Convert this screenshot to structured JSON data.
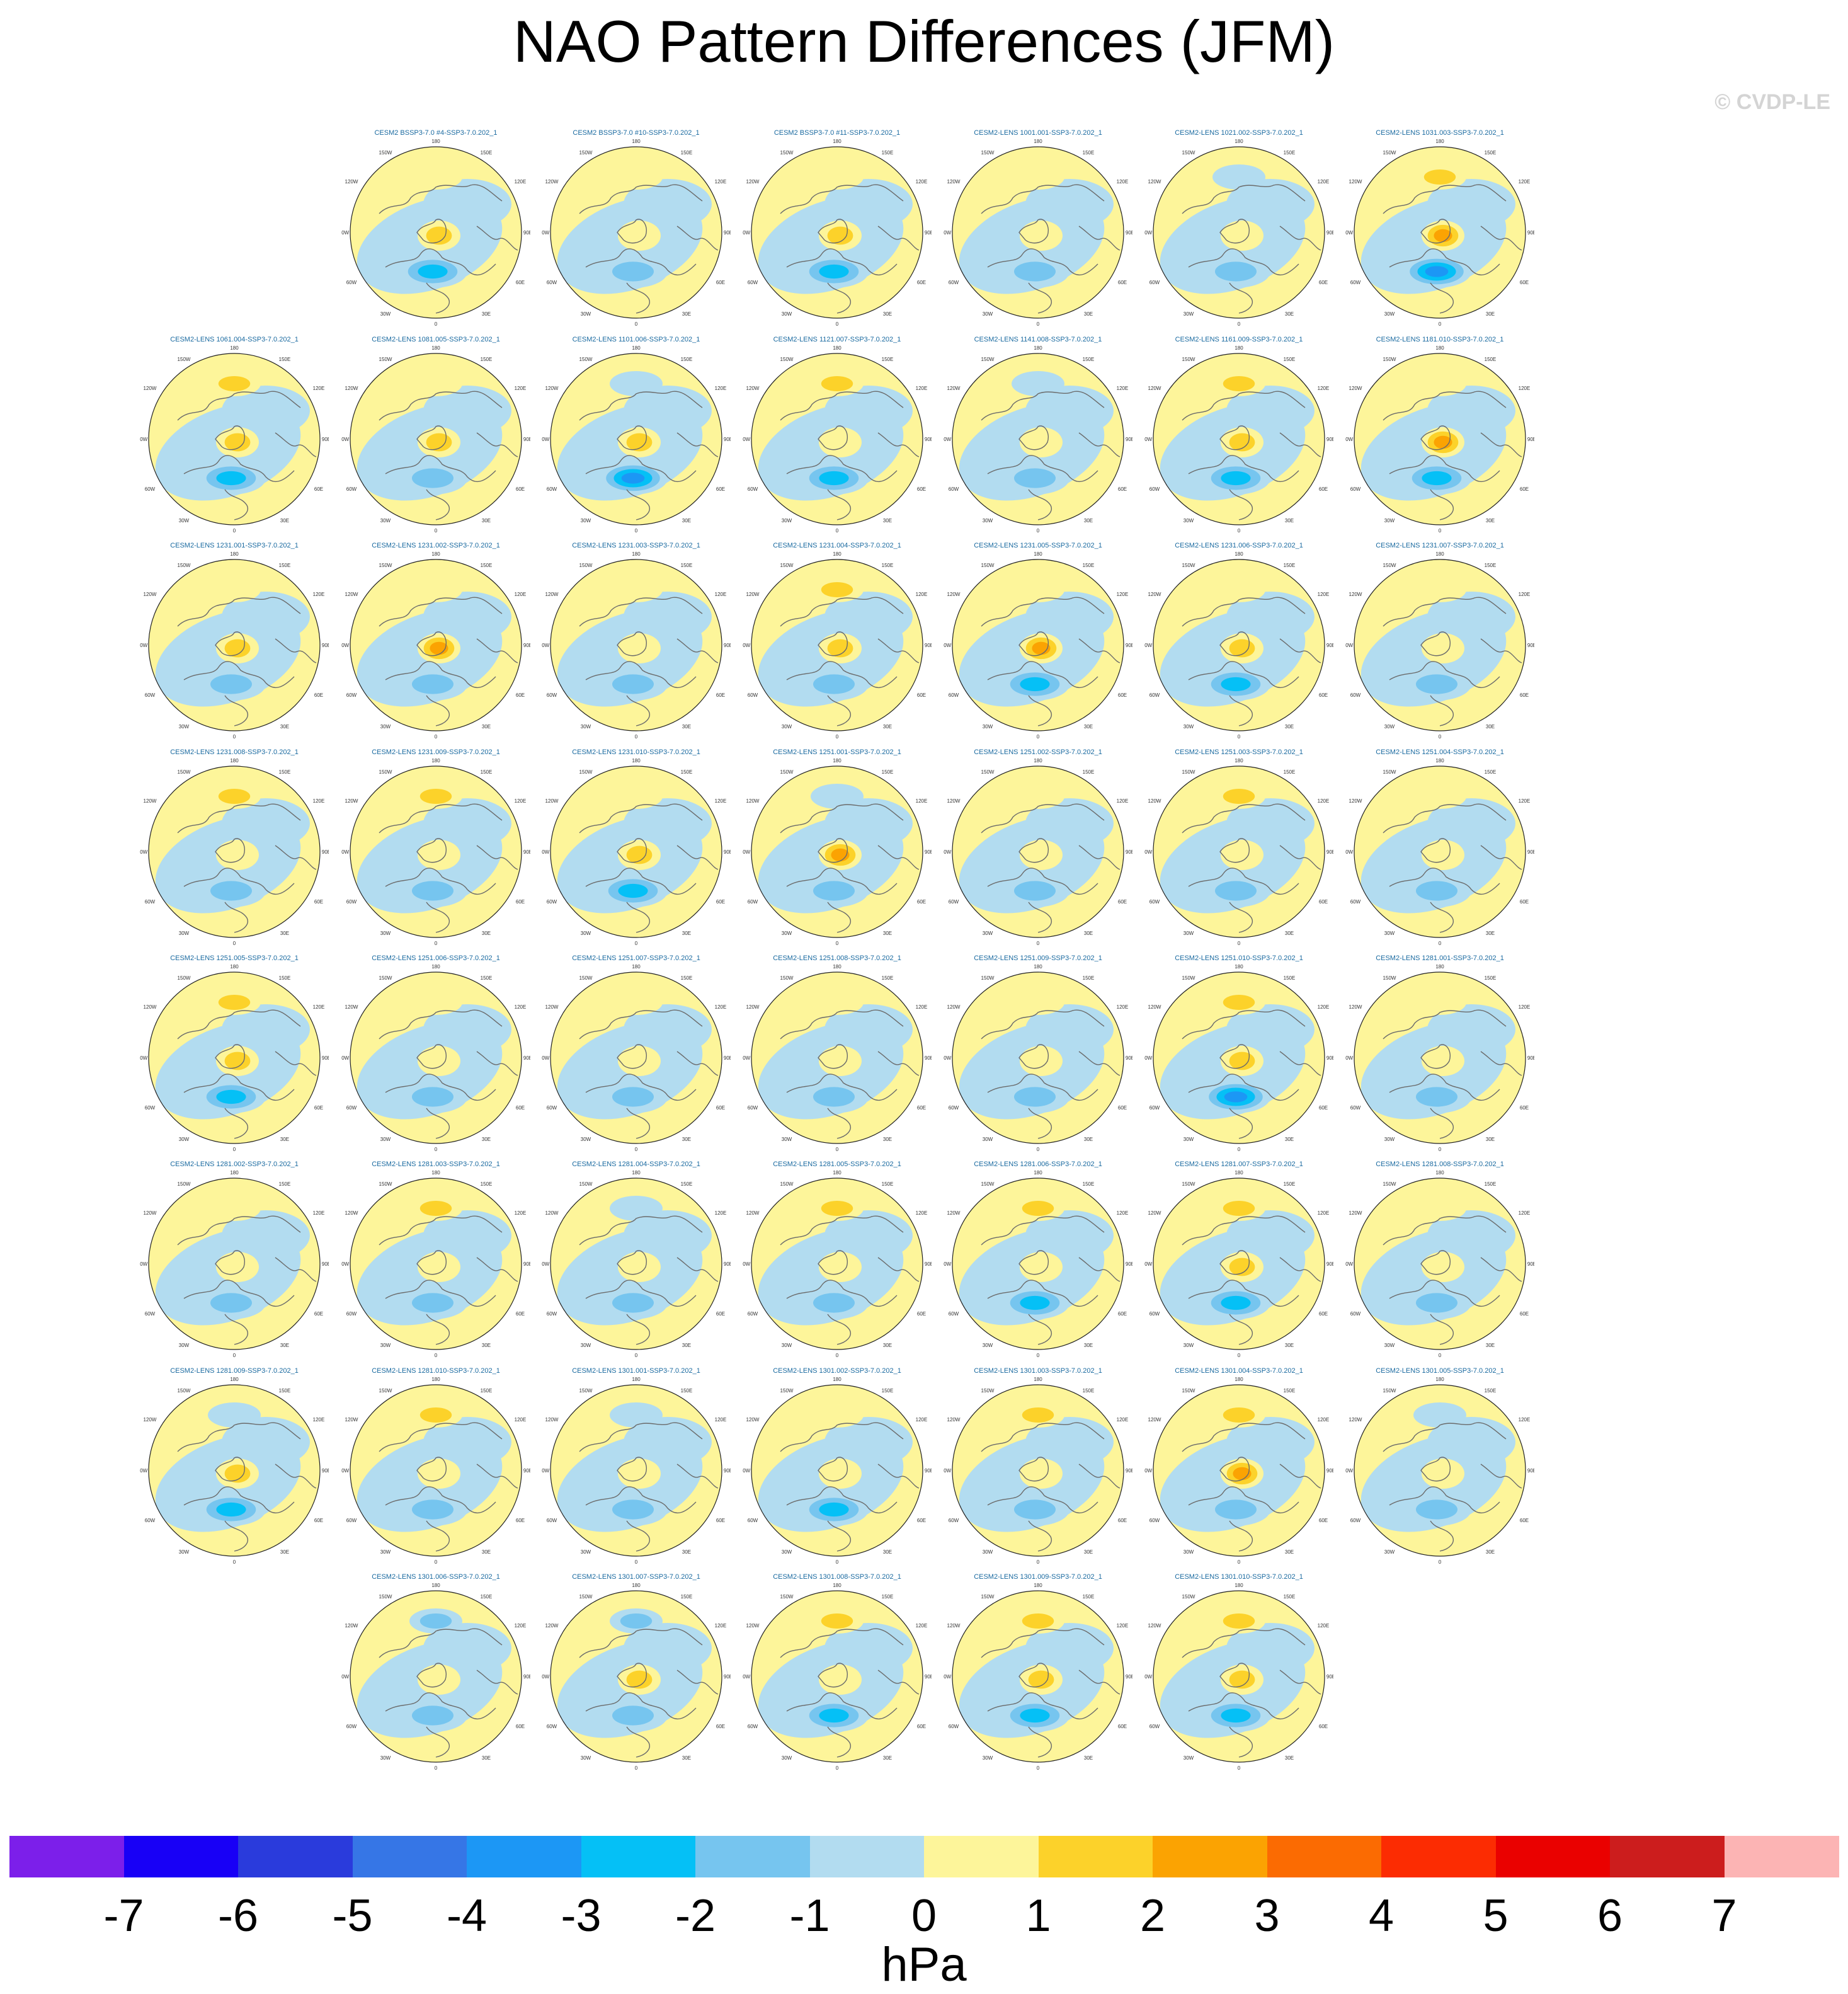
{
  "title": "NAO Pattern Differences (JFM)",
  "watermark": "© CVDP-LE",
  "units": "hPa",
  "colorbar": {
    "labels": [
      "-7",
      "-6",
      "-5",
      "-4",
      "-3",
      "-2",
      "-1",
      "0",
      "1",
      "2",
      "3",
      "4",
      "5",
      "6",
      "7"
    ],
    "colors": [
      "#7c1fea",
      "#1800f6",
      "#2a3bdc",
      "#3676e6",
      "#1c97f5",
      "#05c0f6",
      "#76c5ef",
      "#b2dcf0",
      "#fdf59a",
      "#fcd22a",
      "#fba302",
      "#fb6b02",
      "#fc2c02",
      "#ea0100",
      "#cc1d1d",
      "#fcb4b4"
    ]
  },
  "map_axis_labels": {
    "top": "180",
    "bottom": "0",
    "upper_left": "150W",
    "upper_right": "150E",
    "mid_upper_left": "120W",
    "mid_upper_right": "120E",
    "left": "90W",
    "right": "90E",
    "mid_lower_left": "60W",
    "mid_lower_right": "60E",
    "lower_left": "30W",
    "lower_right": "30E"
  },
  "panels": [
    {
      "title": "CESM2 BSSP3-7.0 #4-SSP3-7.0.202_1",
      "row": 0,
      "col": 1,
      "pos": 1.2,
      "neg": -2.6,
      "pacific": 1.0
    },
    {
      "title": "CESM2 BSSP3-7.0 #10-SSP3-7.0.202_1",
      "row": 0,
      "col": 2,
      "pos": 0.8,
      "neg": -1.6,
      "pacific": 0.5
    },
    {
      "title": "CESM2 BSSP3-7.0 #11-SSP3-7.0.202_1",
      "row": 0,
      "col": 3,
      "pos": 1.4,
      "neg": -2.2,
      "pacific": 0.8
    },
    {
      "title": "CESM2-LENS 1001.001-SSP3-7.0.202_1",
      "row": 0,
      "col": 4,
      "pos": 0.9,
      "neg": -1.4,
      "pacific": 0.6
    },
    {
      "title": "CESM2-LENS 1021.002-SSP3-7.0.202_1",
      "row": 0,
      "col": 5,
      "pos": 0.7,
      "neg": -1.5,
      "pacific": -0.8
    },
    {
      "title": "CESM2-LENS 1031.003-SSP3-7.0.202_1",
      "row": 0,
      "col": 6,
      "pos": 2.1,
      "neg": -3.2,
      "pacific": 1.8
    },
    {
      "title": "CESM2-LENS 1061.004-SSP3-7.0.202_1",
      "row": 1,
      "col": 0,
      "pos": 1.5,
      "neg": -3.0,
      "pacific": 1.4
    },
    {
      "title": "CESM2-LENS 1081.005-SSP3-7.0.202_1",
      "row": 1,
      "col": 1,
      "pos": 2.0,
      "neg": -1.6,
      "pacific": 0.7
    },
    {
      "title": "CESM2-LENS 1101.006-SSP3-7.0.202_1",
      "row": 1,
      "col": 2,
      "pos": 1.1,
      "neg": -3.2,
      "pacific": -0.6
    },
    {
      "title": "CESM2-LENS 1121.007-SSP3-7.0.202_1",
      "row": 1,
      "col": 3,
      "pos": 1.0,
      "neg": -2.1,
      "pacific": 1.5
    },
    {
      "title": "CESM2-LENS 1141.008-SSP3-7.0.202_1",
      "row": 1,
      "col": 4,
      "pos": 0.8,
      "neg": -1.8,
      "pacific": -0.7
    },
    {
      "title": "CESM2-LENS 1161.009-SSP3-7.0.202_1",
      "row": 1,
      "col": 5,
      "pos": 1.6,
      "neg": -2.6,
      "pacific": 1.3
    },
    {
      "title": "CESM2-LENS 1181.010-SSP3-7.0.202_1",
      "row": 1,
      "col": 6,
      "pos": 2.4,
      "neg": -2.9,
      "pacific": 1.0
    },
    {
      "title": "CESM2-LENS 1231.001-SSP3-7.0.202_1",
      "row": 2,
      "col": 0,
      "pos": 1.2,
      "neg": -1.5,
      "pacific": 0.6
    },
    {
      "title": "CESM2-LENS 1231.002-SSP3-7.0.202_1",
      "row": 2,
      "col": 1,
      "pos": 2.3,
      "neg": -1.4,
      "pacific": 0.7
    },
    {
      "title": "CESM2-LENS 1231.003-SSP3-7.0.202_1",
      "row": 2,
      "col": 2,
      "pos": 1.0,
      "neg": -1.3,
      "pacific": 0.5
    },
    {
      "title": "CESM2-LENS 1231.004-SSP3-7.0.202_1",
      "row": 2,
      "col": 3,
      "pos": 1.1,
      "neg": -1.9,
      "pacific": 1.6
    },
    {
      "title": "CESM2-LENS 1231.005-SSP3-7.0.202_1",
      "row": 2,
      "col": 4,
      "pos": 2.6,
      "neg": -2.2,
      "pacific": 0.8
    },
    {
      "title": "CESM2-LENS 1231.006-SSP3-7.0.202_1",
      "row": 2,
      "col": 5,
      "pos": 1.3,
      "neg": -2.6,
      "pacific": 0.9
    },
    {
      "title": "CESM2-LENS 1231.007-SSP3-7.0.202_1",
      "row": 2,
      "col": 6,
      "pos": 0.7,
      "neg": -1.3,
      "pacific": 0.5
    },
    {
      "title": "CESM2-LENS 1231.008-SSP3-7.0.202_1",
      "row": 3,
      "col": 0,
      "pos": 1.0,
      "neg": -1.7,
      "pacific": 1.7
    },
    {
      "title": "CESM2-LENS 1231.009-SSP3-7.0.202_1",
      "row": 3,
      "col": 1,
      "pos": 0.9,
      "neg": -1.9,
      "pacific": 1.2
    },
    {
      "title": "CESM2-LENS 1231.010-SSP3-7.0.202_1",
      "row": 3,
      "col": 2,
      "pos": 2.0,
      "neg": -2.2,
      "pacific": 0.6
    },
    {
      "title": "CESM2-LENS 1251.001-SSP3-7.0.202_1",
      "row": 3,
      "col": 3,
      "pos": 2.9,
      "neg": -1.8,
      "pacific": -0.9
    },
    {
      "title": "CESM2-LENS 1251.002-SSP3-7.0.202_1",
      "row": 3,
      "col": 4,
      "pos": 0.8,
      "neg": -1.9,
      "pacific": 0.5
    },
    {
      "title": "CESM2-LENS 1251.003-SSP3-7.0.202_1",
      "row": 3,
      "col": 5,
      "pos": 0.9,
      "neg": -2.0,
      "pacific": 1.4
    },
    {
      "title": "CESM2-LENS 1251.004-SSP3-7.0.202_1",
      "row": 3,
      "col": 6,
      "pos": 0.7,
      "neg": -1.6,
      "pacific": 0.6
    },
    {
      "title": "CESM2-LENS 1251.005-SSP3-7.0.202_1",
      "row": 4,
      "col": 0,
      "pos": 1.4,
      "neg": -2.5,
      "pacific": 1.1
    },
    {
      "title": "CESM2-LENS 1251.006-SSP3-7.0.202_1",
      "row": 4,
      "col": 1,
      "pos": 0.8,
      "neg": -1.5,
      "pacific": 0.6
    },
    {
      "title": "CESM2-LENS 1251.007-SSP3-7.0.202_1",
      "row": 4,
      "col": 2,
      "pos": 0.7,
      "neg": -1.8,
      "pacific": 0.5
    },
    {
      "title": "CESM2-LENS 1251.008-SSP3-7.0.202_1",
      "row": 4,
      "col": 3,
      "pos": 0.8,
      "neg": -1.6,
      "pacific": 0.6
    },
    {
      "title": "CESM2-LENS 1251.009-SSP3-7.0.202_1",
      "row": 4,
      "col": 4,
      "pos": 0.9,
      "neg": -1.7,
      "pacific": 0.6
    },
    {
      "title": "CESM2-LENS 1251.010-SSP3-7.0.202_1",
      "row": 4,
      "col": 5,
      "pos": 1.2,
      "neg": -3.4,
      "pacific": 1.5
    },
    {
      "title": "CESM2-LENS 1281.001-SSP3-7.0.202_1",
      "row": 4,
      "col": 6,
      "pos": 0.8,
      "neg": -1.5,
      "pacific": 0.5
    },
    {
      "title": "CESM2-LENS 1281.002-SSP3-7.0.202_1",
      "row": 5,
      "col": 0,
      "pos": 0.6,
      "neg": -1.3,
      "pacific": 0.5
    },
    {
      "title": "CESM2-LENS 1281.003-SSP3-7.0.202_1",
      "row": 5,
      "col": 1,
      "pos": 0.8,
      "neg": -1.6,
      "pacific": 1.1
    },
    {
      "title": "CESM2-LENS 1281.004-SSP3-7.0.202_1",
      "row": 5,
      "col": 2,
      "pos": 0.7,
      "neg": -1.4,
      "pacific": -0.7
    },
    {
      "title": "CESM2-LENS 1281.005-SSP3-7.0.202_1",
      "row": 5,
      "col": 3,
      "pos": 0.8,
      "neg": -1.5,
      "pacific": 1.8
    },
    {
      "title": "CESM2-LENS 1281.006-SSP3-7.0.202_1",
      "row": 5,
      "col": 4,
      "pos": 0.9,
      "neg": -2.1,
      "pacific": 1.2
    },
    {
      "title": "CESM2-LENS 1281.007-SSP3-7.0.202_1",
      "row": 5,
      "col": 5,
      "pos": 1.8,
      "neg": -2.4,
      "pacific": 1.9
    },
    {
      "title": "CESM2-LENS 1281.008-SSP3-7.0.202_1",
      "row": 5,
      "col": 6,
      "pos": 0.8,
      "neg": -1.5,
      "pacific": 0.5
    },
    {
      "title": "CESM2-LENS 1281.009-SSP3-7.0.202_1",
      "row": 6,
      "col": 0,
      "pos": 1.1,
      "neg": -2.4,
      "pacific": -0.8
    },
    {
      "title": "CESM2-LENS 1281.010-SSP3-7.0.202_1",
      "row": 6,
      "col": 1,
      "pos": 1.0,
      "neg": -2.0,
      "pacific": 1.7
    },
    {
      "title": "CESM2-LENS 1301.001-SSP3-7.0.202_1",
      "row": 6,
      "col": 2,
      "pos": 0.8,
      "neg": -1.9,
      "pacific": -0.9
    },
    {
      "title": "CESM2-LENS 1301.002-SSP3-7.0.202_1",
      "row": 6,
      "col": 3,
      "pos": 0.9,
      "neg": -2.1,
      "pacific": 0.6
    },
    {
      "title": "CESM2-LENS 1301.003-SSP3-7.0.202_1",
      "row": 6,
      "col": 4,
      "pos": 0.8,
      "neg": -1.7,
      "pacific": 1.2
    },
    {
      "title": "CESM2-LENS 1301.004-SSP3-7.0.202_1",
      "row": 6,
      "col": 5,
      "pos": 2.7,
      "neg": -2.0,
      "pacific": 1.3
    },
    {
      "title": "CESM2-LENS 1301.005-SSP3-7.0.202_1",
      "row": 6,
      "col": 6,
      "pos": 0.7,
      "neg": -1.2,
      "pacific": -0.6
    },
    {
      "title": "CESM2-LENS 1301.006-SSP3-7.0.202_1",
      "row": 7,
      "col": 1,
      "pos": 0.7,
      "neg": -1.9,
      "pacific": -1.1
    },
    {
      "title": "CESM2-LENS 1301.007-SSP3-7.0.202_1",
      "row": 7,
      "col": 2,
      "pos": 1.9,
      "neg": -1.6,
      "pacific": -1.2
    },
    {
      "title": "CESM2-LENS 1301.008-SSP3-7.0.202_1",
      "row": 7,
      "col": 3,
      "pos": 0.9,
      "neg": -2.3,
      "pacific": 1.7
    },
    {
      "title": "CESM2-LENS 1301.009-SSP3-7.0.202_1",
      "row": 7,
      "col": 4,
      "pos": 1.4,
      "neg": -2.2,
      "pacific": 1.3
    },
    {
      "title": "CESM2-LENS 1301.010-SSP3-7.0.202_1",
      "row": 7,
      "col": 5,
      "pos": 1.2,
      "neg": -2.4,
      "pacific": 1.6
    }
  ]
}
